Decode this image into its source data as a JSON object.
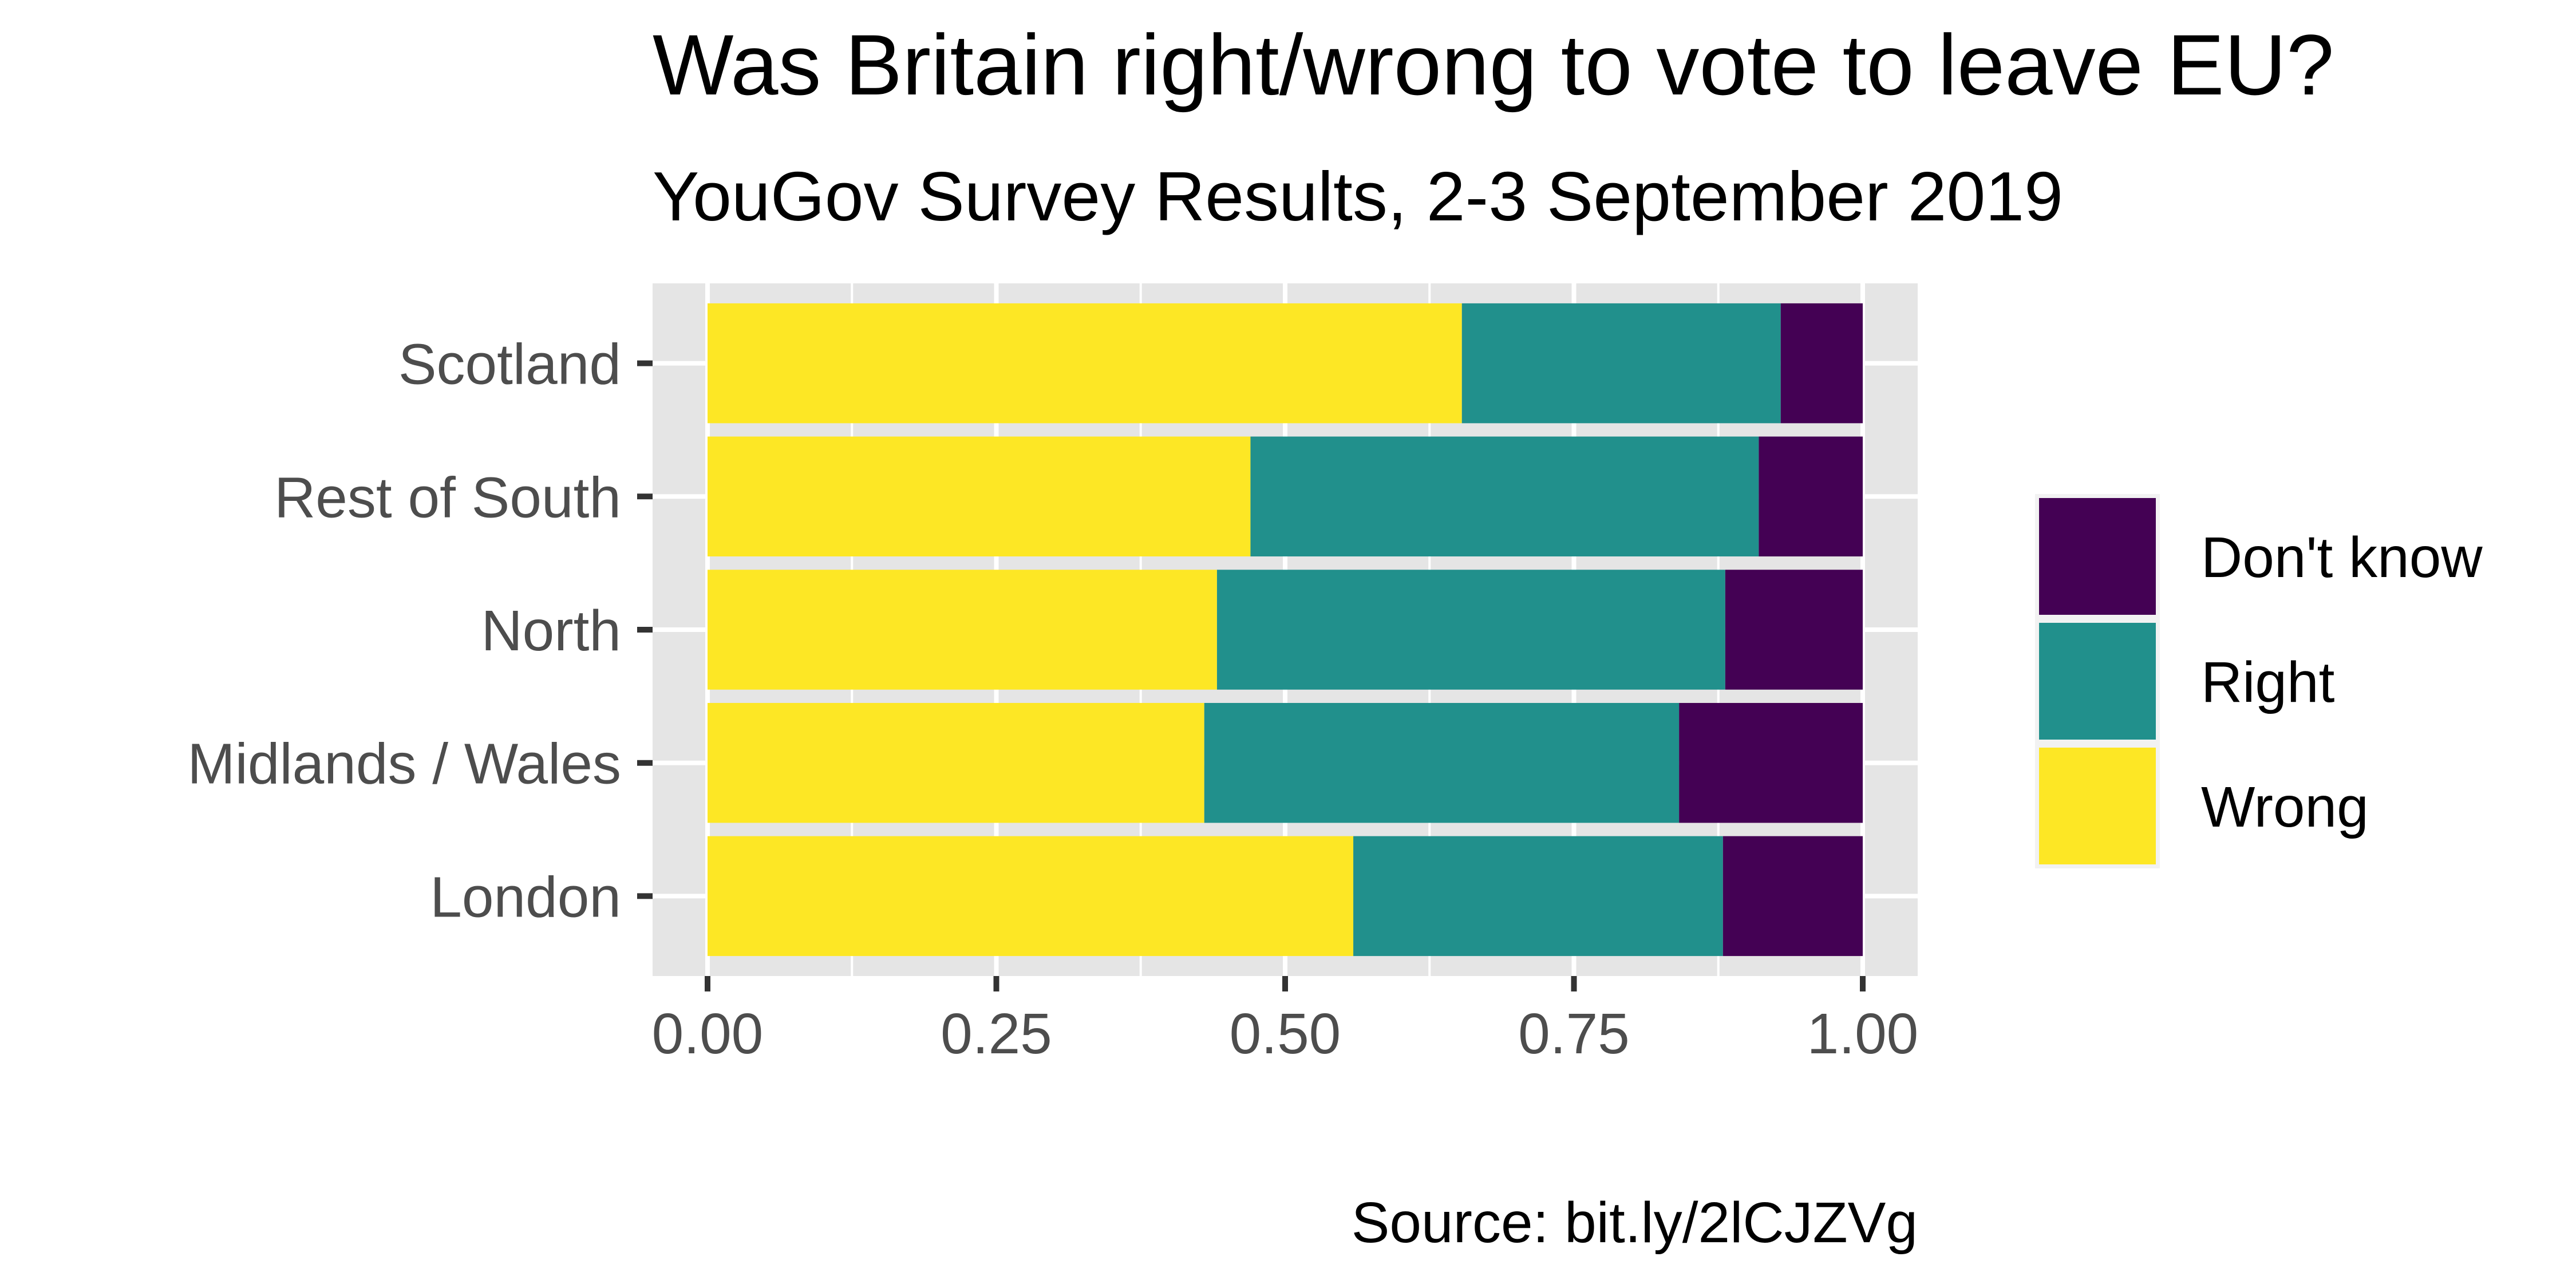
{
  "chart_data": {
    "type": "bar",
    "orientation": "horizontal",
    "stacked": true,
    "title": "Was Britain right/wrong to vote to leave EU?",
    "subtitle": "YouGov Survey Results, 2-3 September 2019",
    "caption": "Source: bit.ly/2lCJZVg",
    "xlabel": "",
    "ylabel": "",
    "xlim": [
      0,
      1
    ],
    "x_ticks": [
      "0.00",
      "0.25",
      "0.50",
      "0.75",
      "1.00"
    ],
    "categories": [
      "Scotland",
      "Rest of South",
      "North",
      "Midlands / Wales",
      "London"
    ],
    "series": [
      {
        "name": "Wrong",
        "color": "#fde725",
        "values": [
          0.653,
          0.47,
          0.441,
          0.43,
          0.559
        ]
      },
      {
        "name": "Right",
        "color": "#21908c",
        "values": [
          0.276,
          0.44,
          0.44,
          0.411,
          0.32
        ]
      },
      {
        "name": "Don't know",
        "color": "#440154",
        "values": [
          0.071,
          0.09,
          0.119,
          0.159,
          0.121
        ]
      }
    ],
    "legend_order": [
      "Don't know",
      "Right",
      "Wrong"
    ],
    "legend_position": "right",
    "grid": true,
    "panel_background": "#e5e5e5"
  }
}
